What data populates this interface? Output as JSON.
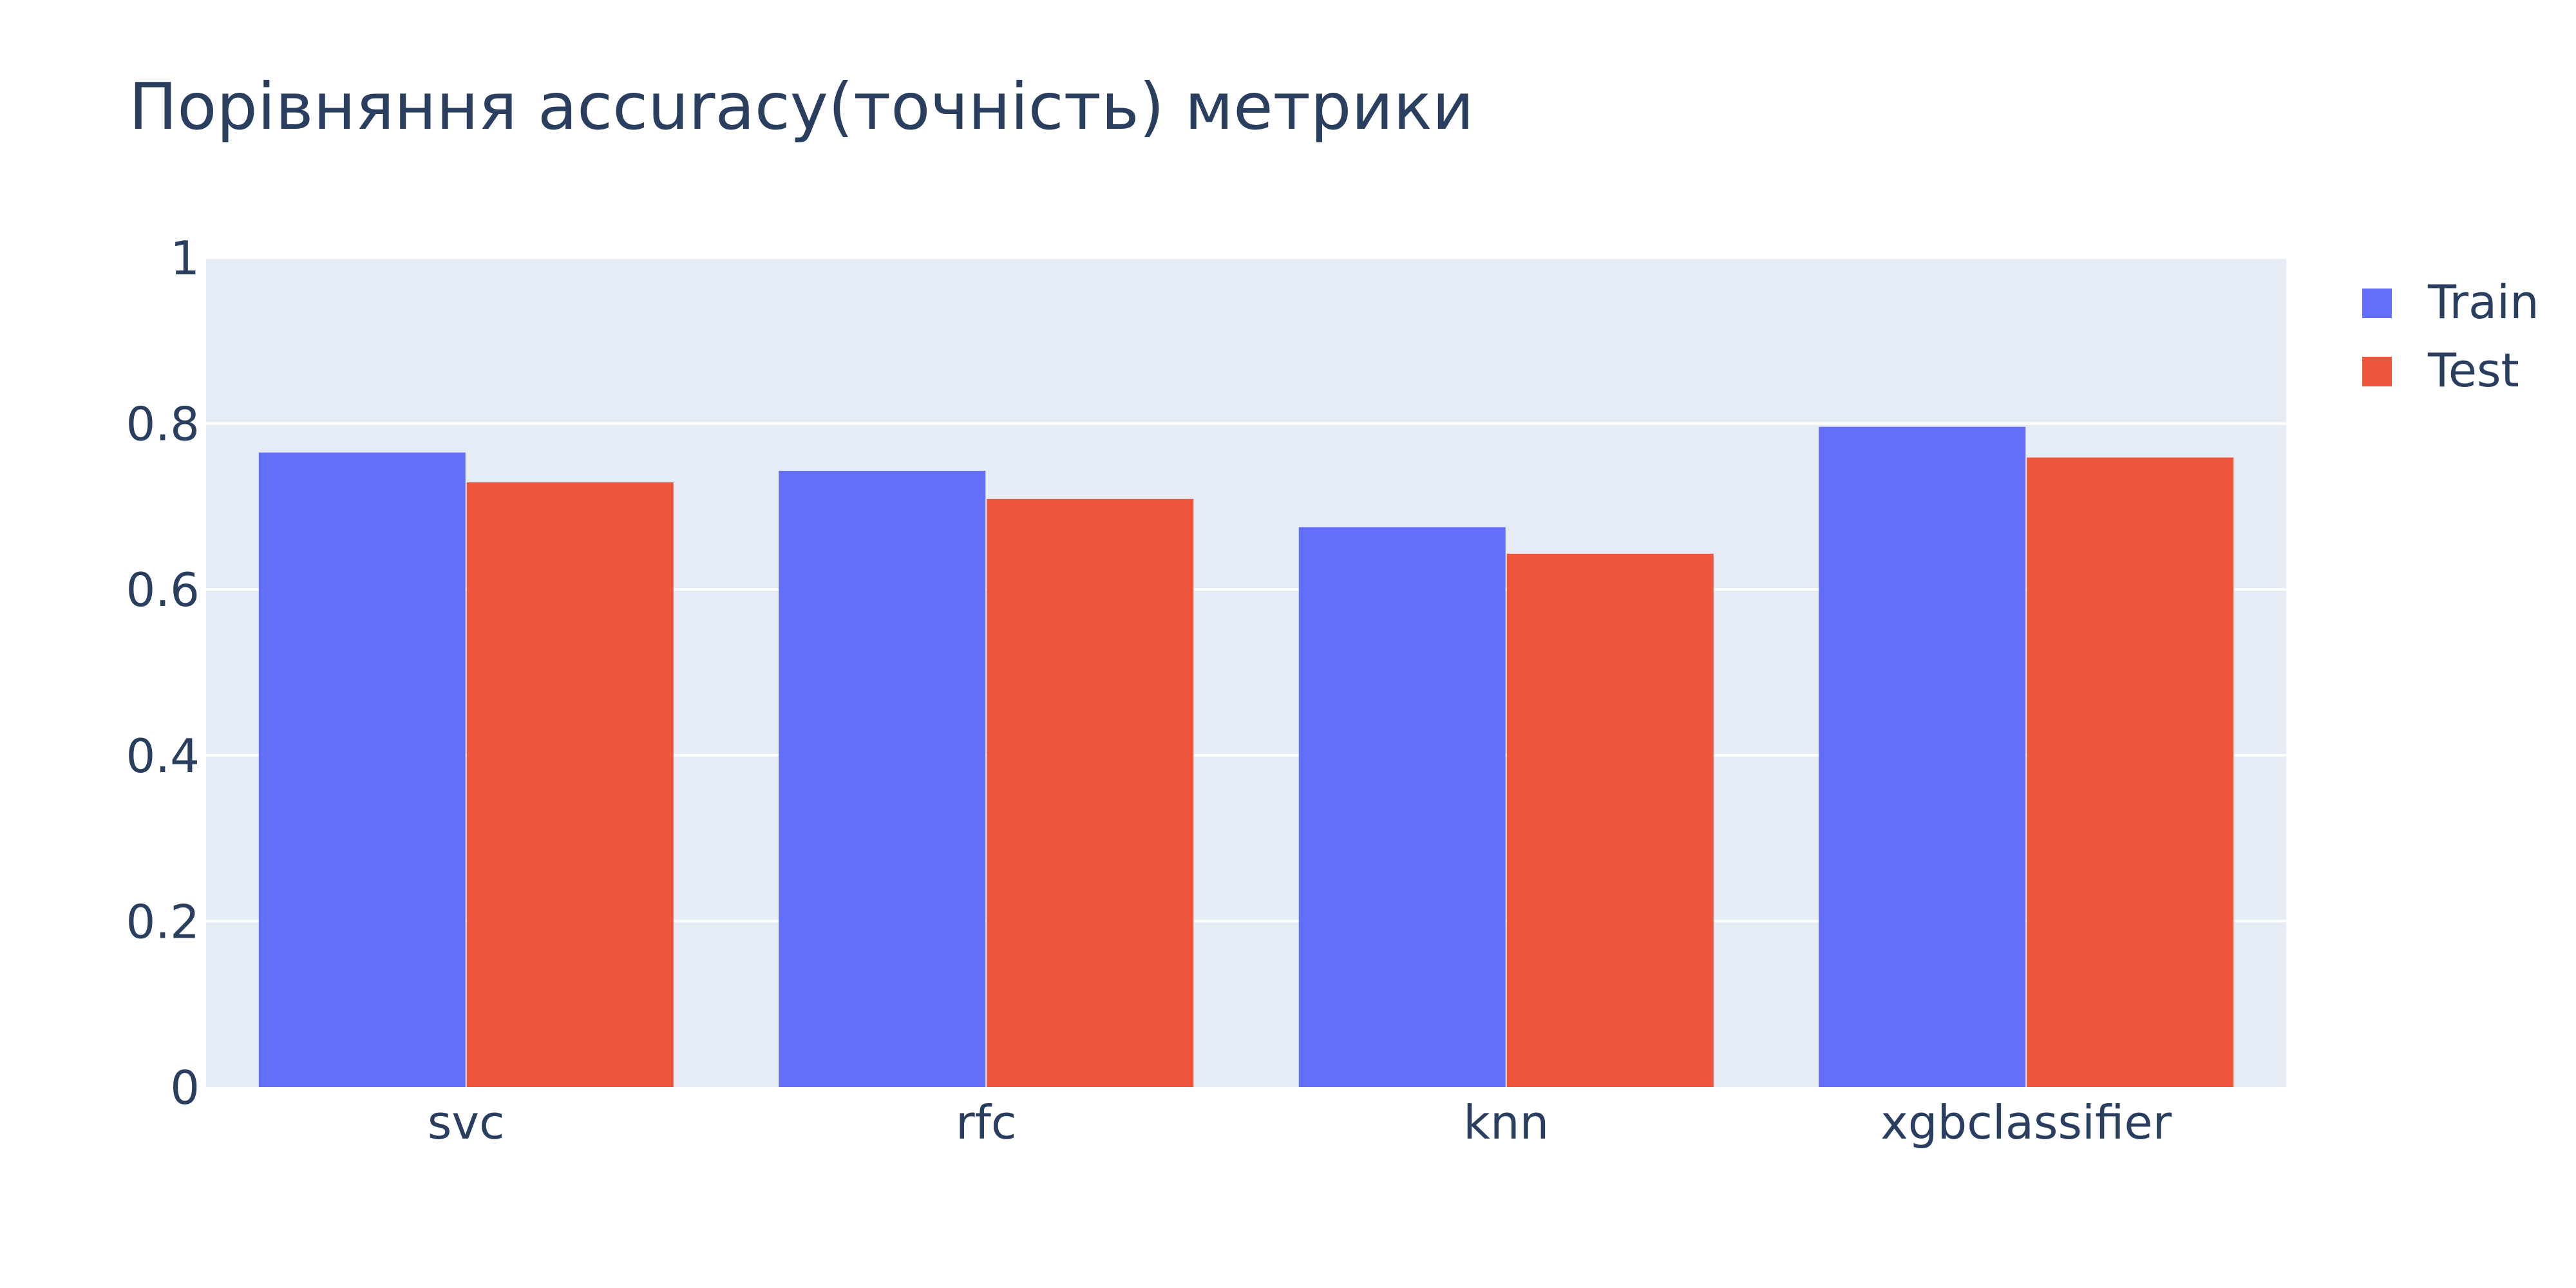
{
  "chart_data": {
    "type": "bar",
    "title": "Порівняння accuracy(точність) метрики",
    "categories": [
      "svc",
      "rfc",
      "knn",
      "xgbclassifier"
    ],
    "series": [
      {
        "name": "Train",
        "values": [
          0.765,
          0.743,
          0.675,
          0.796
        ],
        "color": "#636efa"
      },
      {
        "name": "Test",
        "values": [
          0.729,
          0.709,
          0.643,
          0.759
        ],
        "color": "#ef553b"
      }
    ],
    "ylim": [
      0,
      1
    ],
    "yticks": [
      {
        "value": 0,
        "label": "0"
      },
      {
        "value": 0.2,
        "label": "0.2"
      },
      {
        "value": 0.4,
        "label": "0.4"
      },
      {
        "value": 0.6,
        "label": "0.6"
      },
      {
        "value": 0.8,
        "label": "0.8"
      },
      {
        "value": 1,
        "label": "1"
      }
    ],
    "grid": true,
    "legend_position": "top-right",
    "plot_background": "#e5ecf6",
    "text_color": "#2a3f5f"
  }
}
